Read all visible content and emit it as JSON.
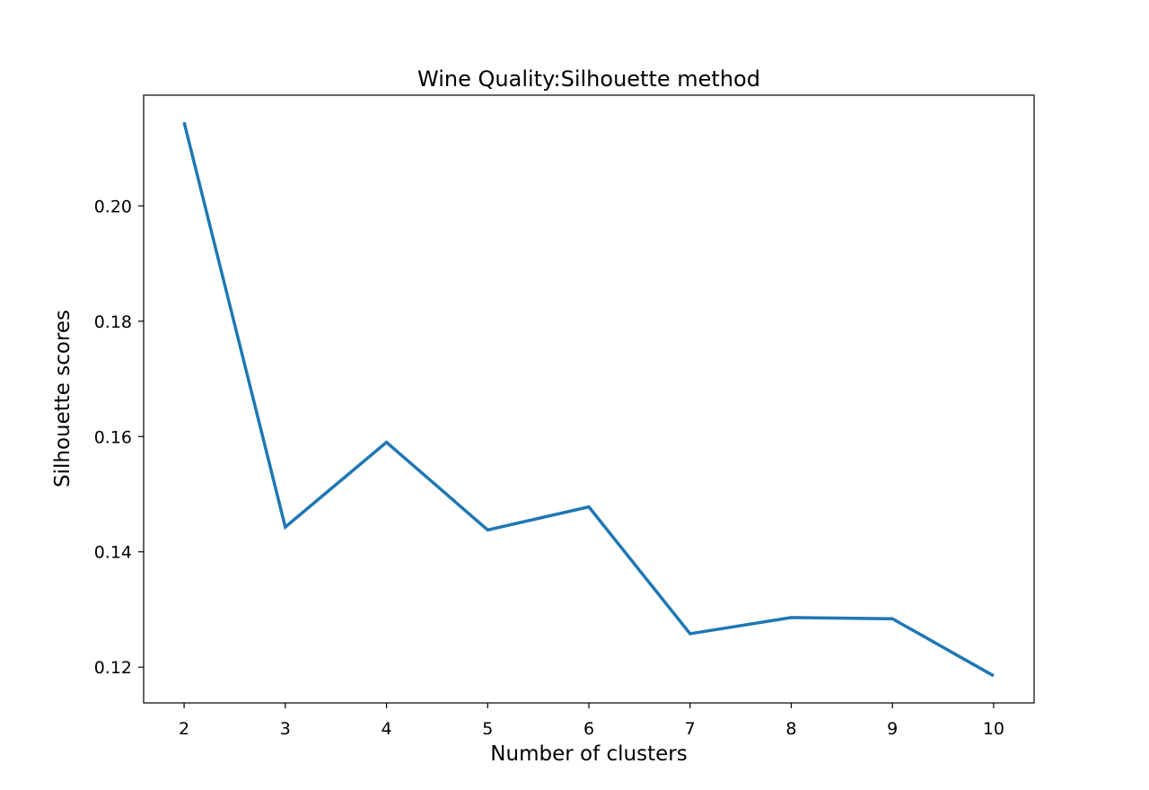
{
  "chart_data": {
    "type": "line",
    "title": "Wine Quality:Silhouette method",
    "xlabel": "Number of clusters",
    "ylabel": "Silhouette scores",
    "x": [
      2,
      3,
      4,
      5,
      6,
      7,
      8,
      9,
      10
    ],
    "series": [
      {
        "values": [
          0.2145,
          0.1443,
          0.159,
          0.1438,
          0.1478,
          0.1258,
          0.1286,
          0.1284,
          0.1185
        ],
        "color": "#1f77b4"
      }
    ],
    "xlim": [
      1.6,
      10.4
    ],
    "ylim": [
      0.1138,
      0.2192
    ],
    "xticks": [
      2,
      3,
      4,
      5,
      6,
      7,
      8,
      9,
      10
    ],
    "yticks": [
      0.12,
      0.14,
      0.16,
      0.18,
      0.2
    ],
    "ytick_labels": [
      "0.12",
      "0.14",
      "0.16",
      "0.18",
      "0.20"
    ],
    "grid": false,
    "legend": false
  }
}
